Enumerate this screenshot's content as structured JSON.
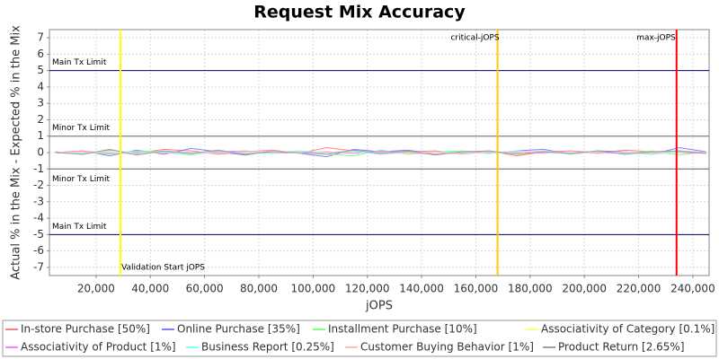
{
  "chart_data": {
    "type": "line",
    "title": "Request Mix Accuracy",
    "x_label": "jOPS",
    "y_label": "Actual % in the Mix - Expected % in the Mix",
    "xlim": [
      2800,
      246000
    ],
    "ylim": [
      -7.5,
      7.5
    ],
    "xticks": [
      {
        "value": 20000,
        "label": "20,000"
      },
      {
        "value": 40000,
        "label": "40,000"
      },
      {
        "value": 60000,
        "label": "60,000"
      },
      {
        "value": 80000,
        "label": "80,000"
      },
      {
        "value": 100000,
        "label": "100,000"
      },
      {
        "value": 120000,
        "label": "120,000"
      },
      {
        "value": 140000,
        "label": "140,000"
      },
      {
        "value": 160000,
        "label": "160,000"
      },
      {
        "value": 180000,
        "label": "180,000"
      },
      {
        "value": 200000,
        "label": "200,000"
      },
      {
        "value": 220000,
        "label": "220,000"
      },
      {
        "value": 240000,
        "label": "240,000"
      }
    ],
    "yticks": [
      -7,
      -6,
      -5,
      -4,
      -3,
      -2,
      -1,
      0,
      1,
      2,
      3,
      4,
      5,
      6,
      7
    ],
    "grid": true,
    "hlines": [
      {
        "value": 5,
        "label": "Main Tx Limit",
        "color": "#000066"
      },
      {
        "value": 1,
        "label": "Minor Tx Limit",
        "color": "#666666"
      },
      {
        "value": -1,
        "label": "Minor Tx Limit",
        "color": "#666666"
      },
      {
        "value": -5,
        "label": "Main Tx Limit",
        "color": "#000066"
      }
    ],
    "vlines": [
      {
        "value": 29000,
        "label": "Validation Start jOPS",
        "color": "#ffff00"
      },
      {
        "value": 168000,
        "label": "critical-jOPS",
        "color": "#ffc800"
      },
      {
        "value": 234000,
        "label": "max-jOPS",
        "color": "#ff0000"
      }
    ],
    "x": [
      5000,
      15000,
      25000,
      35000,
      45000,
      55000,
      65000,
      75000,
      85000,
      95000,
      105000,
      115000,
      125000,
      135000,
      145000,
      155000,
      165000,
      175000,
      185000,
      195000,
      205000,
      215000,
      225000,
      235000,
      245000
    ],
    "series": [
      {
        "name": "In-store Purchase [50%]",
        "color": "#ff8080",
        "values": [
          0.05,
          -0.1,
          0.15,
          -0.05,
          0.2,
          0.1,
          -0.1,
          0.05,
          0.15,
          -0.05,
          0.3,
          0.1,
          -0.1,
          0.05,
          0.1,
          -0.05,
          0.1,
          -0.2,
          0.05,
          0.1,
          -0.05,
          0.15,
          0.05,
          0.1,
          0
        ]
      },
      {
        "name": "Online Purchase [35%]",
        "color": "#8080ff",
        "values": [
          0,
          0.1,
          -0.2,
          0.15,
          -0.1,
          0.25,
          0.05,
          -0.15,
          0.1,
          -0.05,
          -0.25,
          0.2,
          0.05,
          0.15,
          -0.1,
          0.05,
          -0.05,
          0.1,
          0.2,
          -0.1,
          0.1,
          0.05,
          -0.1,
          0.3,
          0.05
        ]
      },
      {
        "name": "Installment Purchase [10%]",
        "color": "#80ff80",
        "values": [
          0,
          0.05,
          -0.1,
          0.1,
          0.05,
          -0.15,
          0.1,
          -0.05,
          0,
          0.1,
          -0.1,
          -0.2,
          0.15,
          -0.1,
          0.05,
          0.1,
          0,
          -0.05,
          0.1,
          -0.1,
          0.05,
          -0.05,
          0.1,
          -0.15,
          0.05
        ]
      },
      {
        "name": "Associativity of Category [0.1%]",
        "color": "#ffff80",
        "values": [
          0,
          0,
          0.02,
          0,
          -0.02,
          0,
          0.01,
          0,
          -0.01,
          0.02,
          0,
          0,
          0.01,
          -0.02,
          0,
          0,
          0.01,
          0,
          -0.01,
          0,
          0.02,
          0,
          0,
          -0.01,
          0
        ]
      },
      {
        "name": "Associativity of Product [1%]",
        "color": "#ff80ff",
        "values": [
          0,
          0.1,
          -0.05,
          0.05,
          0,
          -0.1,
          0.05,
          0.1,
          -0.05,
          0,
          0.05,
          -0.05,
          0.1,
          0,
          -0.1,
          0.05,
          0,
          0.05,
          -0.05,
          0.1,
          0,
          -0.05,
          0.05,
          0,
          -0.05
        ]
      },
      {
        "name": "Business Report [0.25%]",
        "color": "#80ffff",
        "values": [
          0,
          -0.05,
          0.1,
          0,
          0.05,
          -0.1,
          0,
          0.05,
          -0.05,
          0.1,
          0,
          0.05,
          -0.1,
          0,
          0.05,
          0,
          -0.05,
          0.1,
          0,
          -0.05,
          0.05,
          0,
          -0.1,
          0.05,
          0
        ]
      },
      {
        "name": "Customer Buying Behavior [1%]",
        "color": "#ffc0c0",
        "values": [
          0,
          0.05,
          0,
          -0.1,
          0.1,
          0,
          -0.05,
          0.05,
          0.1,
          -0.05,
          0,
          0.1,
          -0.05,
          0,
          0.05,
          -0.1,
          0.05,
          0,
          0.1,
          -0.05,
          0,
          0.05,
          -0.05,
          0.1,
          0
        ]
      },
      {
        "name": "Product Return [2.65%]",
        "color": "#a0a0a0",
        "values": [
          0,
          -0.1,
          0.2,
          -0.15,
          0.1,
          -0.05,
          0.15,
          -0.1,
          0.05,
          0,
          -0.1,
          0.15,
          -0.05,
          0.1,
          -0.15,
          0.05,
          0.1,
          -0.1,
          0.05,
          -0.05,
          0.1,
          -0.1,
          0.05,
          0.1,
          -0.05
        ]
      }
    ]
  }
}
